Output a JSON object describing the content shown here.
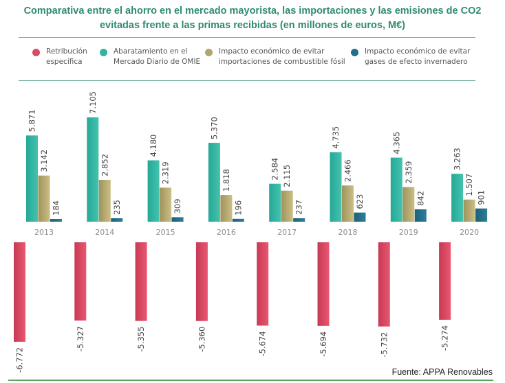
{
  "title_lines": [
    "Comparativa entre el ahorro en el mercado mayorista, las importaciones y las emisiones de CO2",
    "evitadas frente a las primas recibidas (en millones de euros, M€)"
  ],
  "source": "Fuente: APPA Renovables",
  "colors": {
    "title": "#2e8b73",
    "retribucion": "#dc4a63",
    "abaratamiento": "#33b3a0",
    "importaciones": "#b2a66d",
    "gases": "#236e89",
    "rule": "#6aa98d"
  },
  "chart_data": {
    "type": "bar",
    "title": "Comparativa entre el ahorro en el mercado mayorista, las importaciones y las emisiones de CO2 evitadas frente a las primas recibidas (en millones de euros, M€)",
    "xlabel": "",
    "ylabel": "",
    "units": "millones de euros (M€)",
    "grid": false,
    "legend_position": "top",
    "categories": [
      "2013",
      "2014",
      "2015",
      "2016",
      "2017",
      "2018",
      "2019",
      "2020"
    ],
    "series": [
      {
        "name": "Retribución específica",
        "legend_label": "Retribución\nespecífica",
        "color_key": "retribucion",
        "values": [
          -6772,
          -5327,
          -5355,
          -5360,
          -5674,
          -5694,
          -5732,
          -5274
        ],
        "labels": [
          "-6.772",
          "-5.327",
          "-5.355",
          "-5.360",
          "-5.674",
          "-5.694",
          "-5.732",
          "-5.274"
        ]
      },
      {
        "name": "Abaratamiento en el Mercado Diario de OMIE",
        "legend_label": "Abaratamiento en el\nMercado Diario de OMIE",
        "color_key": "abaratamiento",
        "values": [
          5871,
          7105,
          4180,
          5370,
          2584,
          4735,
          4365,
          3263
        ],
        "labels": [
          "5.871",
          "7.105",
          "4.180",
          "5.370",
          "2.584",
          "4.735",
          "4.365",
          "3.263"
        ]
      },
      {
        "name": "Impacto económico de evitar importaciones de combustible fósil",
        "legend_label": "Impacto económico de evitar\nimportaciones de combustible fósil",
        "color_key": "importaciones",
        "values": [
          3142,
          2852,
          2319,
          1818,
          2115,
          2466,
          2359,
          1507
        ],
        "labels": [
          "3.142",
          "2.852",
          "2.319",
          "1.818",
          "2.115",
          "2.466",
          "2.359",
          "1.507"
        ]
      },
      {
        "name": "Impacto económico de evitar gases de efecto invernadero",
        "legend_label": "Impacto económico de evitar\ngases de efecto invernadero",
        "color_key": "gases",
        "values": [
          184,
          235,
          309,
          196,
          237,
          623,
          842,
          901
        ],
        "labels": [
          "184",
          "235",
          "309",
          "196",
          "237",
          "623",
          "842",
          "901"
        ]
      }
    ]
  }
}
